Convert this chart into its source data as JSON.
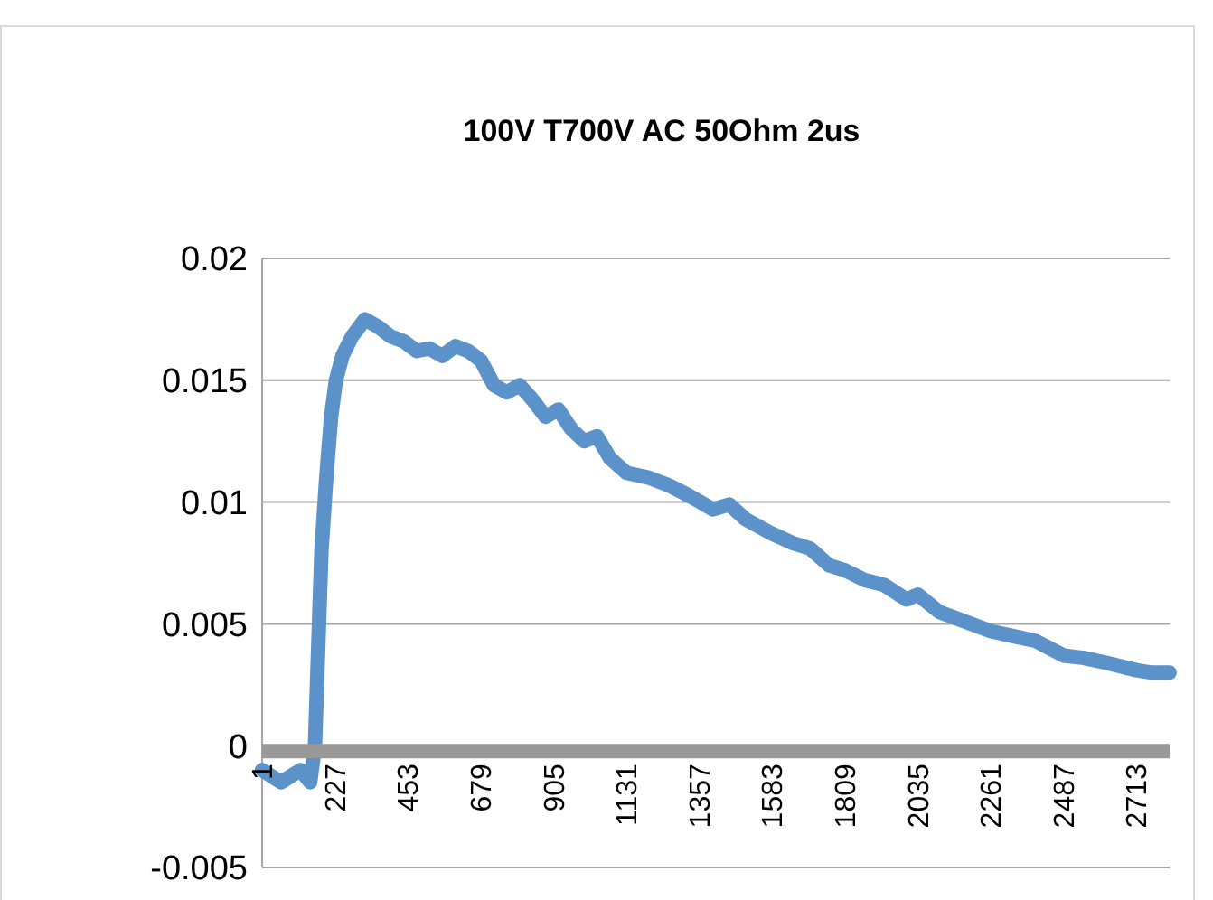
{
  "chart_data": {
    "type": "line",
    "title": "100V T700V AC 50Ohm 2us",
    "x": [
      1,
      60,
      120,
      150,
      165,
      175,
      185,
      200,
      215,
      230,
      250,
      280,
      320,
      360,
      400,
      440,
      480,
      520,
      560,
      600,
      640,
      680,
      720,
      760,
      800,
      840,
      880,
      920,
      960,
      1000,
      1040,
      1080,
      1131,
      1200,
      1260,
      1320,
      1400,
      1450,
      1500,
      1583,
      1650,
      1700,
      1760,
      1809,
      1870,
      1930,
      2000,
      2035,
      2100,
      2160,
      2261,
      2330,
      2400,
      2487,
      2550,
      2620,
      2713,
      2760,
      2816
    ],
    "series": [
      {
        "color": "#5b92c9",
        "values": [
          -0.001,
          -0.0015,
          -0.001,
          -0.0015,
          0.0,
          0.004,
          0.008,
          0.011,
          0.0135,
          0.015,
          0.016,
          0.0168,
          0.0175,
          0.0172,
          0.0168,
          0.0166,
          0.0162,
          0.0163,
          0.016,
          0.0164,
          0.0162,
          0.0158,
          0.0148,
          0.0145,
          0.0148,
          0.0142,
          0.0135,
          0.0138,
          0.013,
          0.0125,
          0.0127,
          0.0118,
          0.0112,
          0.011,
          0.0107,
          0.0103,
          0.0097,
          0.0099,
          0.0093,
          0.0087,
          0.0083,
          0.0081,
          0.0074,
          0.0072,
          0.0068,
          0.0066,
          0.006,
          0.0062,
          0.0055,
          0.0052,
          0.0047,
          0.0045,
          0.0043,
          0.0037,
          0.0036,
          0.0034,
          0.0031,
          0.003,
          0.003
        ]
      }
    ],
    "xlim": [
      1,
      2816
    ],
    "xticks": [
      1,
      227,
      453,
      679,
      905,
      1131,
      1357,
      1583,
      1809,
      2035,
      2261,
      2487,
      2713
    ],
    "ylim": [
      -0.005,
      0.02
    ],
    "yticks": [
      {
        "value": -0.005,
        "label": "-0.005"
      },
      {
        "value": 0,
        "label": "0"
      },
      {
        "value": 0.005,
        "label": "0.005"
      },
      {
        "value": 0.01,
        "label": "0.01"
      },
      {
        "value": 0.015,
        "label": "0.015"
      },
      {
        "value": 0.02,
        "label": "0.02"
      }
    ],
    "grid": "y",
    "line_style": "solid"
  }
}
